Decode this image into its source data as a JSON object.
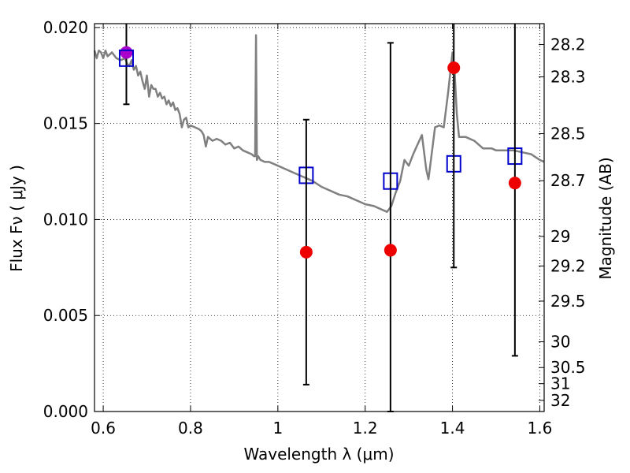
{
  "chart_data": {
    "type": "scatter",
    "xlabel": "Wavelength  λ (μm)",
    "ylabel": "Flux  Fν  ( μJy )",
    "y2label": "Magnitude (AB)",
    "xlim": [
      0.58,
      1.61
    ],
    "ylim": [
      0.0,
      0.0202
    ],
    "grid": true,
    "x_ticks": [
      {
        "value": 0.6,
        "label": "0.6"
      },
      {
        "value": 0.8,
        "label": "0.8"
      },
      {
        "value": 1.0,
        "label": "1"
      },
      {
        "value": 1.2,
        "label": "1.2"
      },
      {
        "value": 1.4,
        "label": "1.4"
      },
      {
        "value": 1.6,
        "label": "1.6"
      }
    ],
    "y_ticks": [
      {
        "value": 0.0,
        "label": "0.000"
      },
      {
        "value": 0.005,
        "label": "0.005"
      },
      {
        "value": 0.01,
        "label": "0.010"
      },
      {
        "value": 0.015,
        "label": "0.015"
      },
      {
        "value": 0.02,
        "label": "0.020"
      }
    ],
    "y2_ticks": [
      {
        "flux": 0.01911,
        "label": "28.2"
      },
      {
        "flux": 0.01743,
        "label": "28.3"
      },
      {
        "flux": 0.01447,
        "label": "28.5"
      },
      {
        "flux": 0.01202,
        "label": "28.7"
      },
      {
        "flux": 0.00912,
        "label": "29"
      },
      {
        "flux": 0.00758,
        "label": "29.2"
      },
      {
        "flux": 0.00575,
        "label": "29.5"
      },
      {
        "flux": 0.00363,
        "label": "30"
      },
      {
        "flux": 0.00229,
        "label": "30.5"
      },
      {
        "flux": 0.00145,
        "label": "31"
      },
      {
        "flux": 0.00058,
        "label": "32"
      }
    ],
    "series": [
      {
        "kind": "line",
        "color": "#808080",
        "points": [
          [
            0.58,
            0.0188
          ],
          [
            0.585,
            0.0184
          ],
          [
            0.59,
            0.0188
          ],
          [
            0.595,
            0.0187
          ],
          [
            0.6,
            0.0184
          ],
          [
            0.605,
            0.0188
          ],
          [
            0.61,
            0.0185
          ],
          [
            0.62,
            0.0187
          ],
          [
            0.63,
            0.0184
          ],
          [
            0.64,
            0.0183
          ],
          [
            0.65,
            0.0184
          ],
          [
            0.655,
            0.0181
          ],
          [
            0.66,
            0.018
          ],
          [
            0.665,
            0.0183
          ],
          [
            0.67,
            0.0178
          ],
          [
            0.675,
            0.018
          ],
          [
            0.68,
            0.0175
          ],
          [
            0.685,
            0.0177
          ],
          [
            0.69,
            0.0172
          ],
          [
            0.695,
            0.0168
          ],
          [
            0.7,
            0.0175
          ],
          [
            0.705,
            0.0164
          ],
          [
            0.71,
            0.017
          ],
          [
            0.715,
            0.0168
          ],
          [
            0.72,
            0.0168
          ],
          [
            0.725,
            0.0164
          ],
          [
            0.73,
            0.0166
          ],
          [
            0.735,
            0.0163
          ],
          [
            0.74,
            0.0164
          ],
          [
            0.745,
            0.016
          ],
          [
            0.75,
            0.0162
          ],
          [
            0.755,
            0.0159
          ],
          [
            0.76,
            0.0161
          ],
          [
            0.765,
            0.0157
          ],
          [
            0.77,
            0.0158
          ],
          [
            0.775,
            0.0155
          ],
          [
            0.78,
            0.0148
          ],
          [
            0.785,
            0.0152
          ],
          [
            0.79,
            0.0153
          ],
          [
            0.795,
            0.0148
          ],
          [
            0.8,
            0.0149
          ],
          [
            0.81,
            0.0148
          ],
          [
            0.82,
            0.0147
          ],
          [
            0.825,
            0.0146
          ],
          [
            0.83,
            0.0144
          ],
          [
            0.835,
            0.0138
          ],
          [
            0.84,
            0.0143
          ],
          [
            0.85,
            0.0141
          ],
          [
            0.86,
            0.0142
          ],
          [
            0.87,
            0.0141
          ],
          [
            0.88,
            0.0139
          ],
          [
            0.89,
            0.014
          ],
          [
            0.9,
            0.0137
          ],
          [
            0.91,
            0.0138
          ],
          [
            0.92,
            0.0136
          ],
          [
            0.93,
            0.0135
          ],
          [
            0.94,
            0.0134
          ],
          [
            0.945,
            0.0133
          ],
          [
            0.948,
            0.0133
          ],
          [
            0.95,
            0.0196
          ],
          [
            0.952,
            0.0131
          ],
          [
            0.955,
            0.0133
          ],
          [
            0.96,
            0.0131
          ],
          [
            0.97,
            0.013
          ],
          [
            0.98,
            0.013
          ],
          [
            1.0,
            0.0128
          ],
          [
            1.02,
            0.0126
          ],
          [
            1.04,
            0.0124
          ],
          [
            1.06,
            0.0122
          ],
          [
            1.08,
            0.012
          ],
          [
            1.1,
            0.0117
          ],
          [
            1.12,
            0.0115
          ],
          [
            1.14,
            0.0113
          ],
          [
            1.16,
            0.0112
          ],
          [
            1.18,
            0.011
          ],
          [
            1.2,
            0.0108
          ],
          [
            1.22,
            0.0107
          ],
          [
            1.24,
            0.0105
          ],
          [
            1.25,
            0.0104
          ],
          [
            1.26,
            0.0107
          ],
          [
            1.27,
            0.0114
          ],
          [
            1.28,
            0.012
          ],
          [
            1.29,
            0.0131
          ],
          [
            1.3,
            0.0128
          ],
          [
            1.31,
            0.0134
          ],
          [
            1.32,
            0.0139
          ],
          [
            1.33,
            0.0144
          ],
          [
            1.34,
            0.0126
          ],
          [
            1.345,
            0.0121
          ],
          [
            1.35,
            0.013
          ],
          [
            1.36,
            0.0148
          ],
          [
            1.37,
            0.0149
          ],
          [
            1.38,
            0.0148
          ],
          [
            1.39,
            0.0166
          ],
          [
            1.4,
            0.0187
          ],
          [
            1.405,
            0.0176
          ],
          [
            1.41,
            0.0155
          ],
          [
            1.415,
            0.0143
          ],
          [
            1.43,
            0.0143
          ],
          [
            1.45,
            0.0141
          ],
          [
            1.47,
            0.0137
          ],
          [
            1.49,
            0.0137
          ],
          [
            1.5,
            0.0136
          ],
          [
            1.52,
            0.0136
          ],
          [
            1.54,
            0.0136
          ],
          [
            1.56,
            0.0135
          ],
          [
            1.58,
            0.0134
          ],
          [
            1.6,
            0.0131
          ],
          [
            1.61,
            0.013
          ]
        ]
      },
      {
        "kind": "markers",
        "marker": "square-open",
        "color": "#0000cc",
        "x": [
          0.653,
          1.065,
          1.258,
          1.403,
          1.543
        ],
        "y": [
          0.0184,
          0.0123,
          0.012,
          0.0129,
          0.0133
        ]
      },
      {
        "kind": "markers",
        "marker": "circle",
        "color": "#ee0000",
        "x": [
          0.653,
          1.065,
          1.258,
          1.403,
          1.543
        ],
        "y": [
          0.0187,
          0.0083,
          0.0084,
          0.0179,
          0.0119
        ],
        "y_err_low": [
          0.016,
          0.0014,
          0.0,
          0.0075,
          0.0029
        ],
        "y_err_high": [
          0.0202,
          0.0152,
          0.0192,
          0.0202,
          0.0202
        ],
        "point_colors": [
          "#aa00cc",
          "#ee0000",
          "#ee0000",
          "#ee0000",
          "#ee0000"
        ]
      }
    ]
  }
}
